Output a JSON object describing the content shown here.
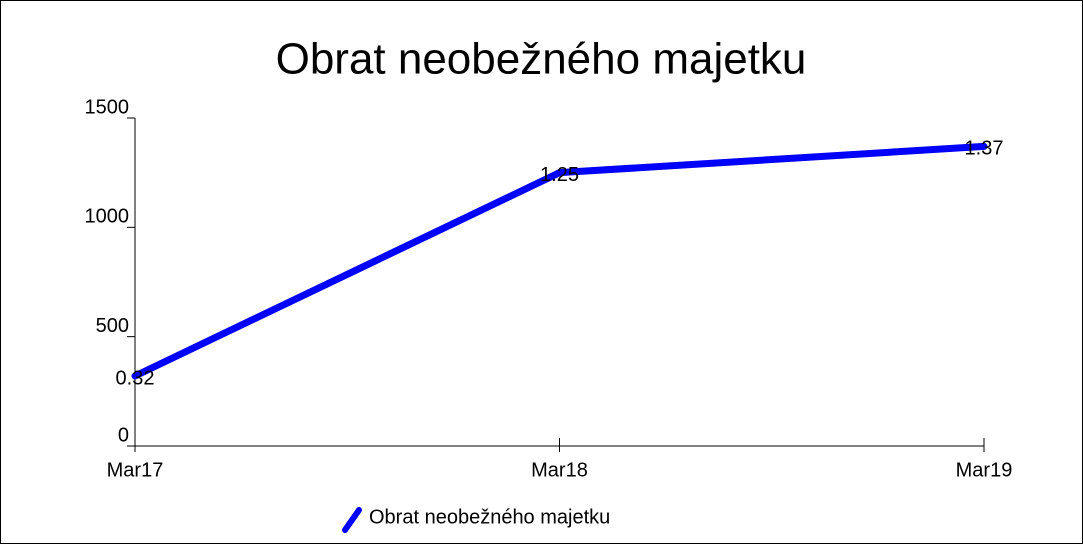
{
  "chart_data": {
    "type": "line",
    "title": "Obrat neobežného majetku",
    "categories": [
      "Mar17",
      "Mar18",
      "Mar19"
    ],
    "series": [
      {
        "name": "Obrat neobežného majetku",
        "color": "#0000ff",
        "values": [
          320,
          1250,
          1370
        ],
        "value_labels": [
          "0.32",
          "1.25",
          "1.37"
        ]
      }
    ],
    "ylim": [
      0,
      1500
    ],
    "yticks": [
      0,
      500,
      1000,
      1500
    ],
    "grid": false,
    "legend": "bottom"
  }
}
